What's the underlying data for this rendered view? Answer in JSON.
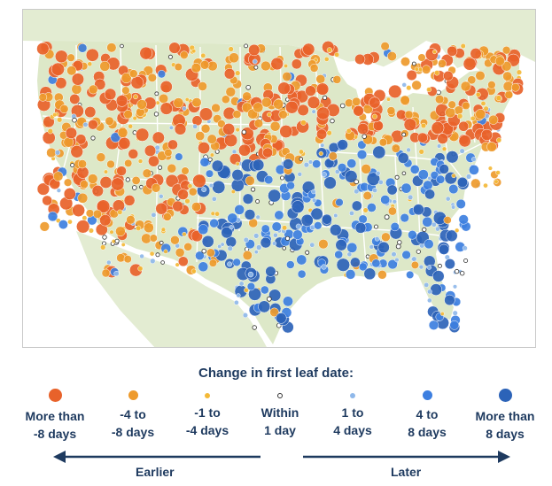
{
  "legend": {
    "title": "Change in first leaf date:",
    "items": [
      {
        "label": "More than\n-8 days",
        "color": "#e8622a",
        "size": "large"
      },
      {
        "label": "-4 to\n-8 days",
        "color": "#ee9a2c",
        "size": "medium"
      },
      {
        "label": "-1 to\n-4 days",
        "color": "#f4b937",
        "size": "small"
      },
      {
        "label": "Within\n1 day",
        "color": "#ffffff",
        "outline": "#333333",
        "size": "tiny"
      },
      {
        "label": "1 to\n4 days",
        "color": "#8fb8ea",
        "size": "small"
      },
      {
        "label": "4 to\n8 days",
        "color": "#3d7fe0",
        "size": "medium"
      },
      {
        "label": "More than\n8 days",
        "color": "#2c63b8",
        "size": "large"
      }
    ],
    "earlier_label": "Earlier",
    "later_label": "Later"
  },
  "colors": {
    "land": "#dde8c8",
    "water": "#ffffff",
    "borders": "#ffffff",
    "text": "#1e3a5f"
  }
}
